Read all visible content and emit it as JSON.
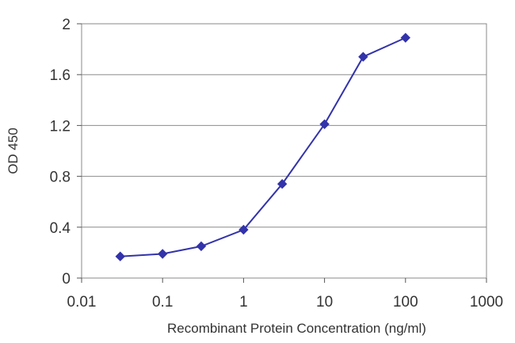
{
  "chart_data": {
    "type": "line",
    "title": "",
    "xlabel": "Recombinant Protein Concentration (ng/ml)",
    "ylabel": "OD 450",
    "x_scale": "log",
    "xlim": [
      0.01,
      1000
    ],
    "ylim": [
      0,
      2
    ],
    "x_ticks": [
      "0.01",
      "0.1",
      "1",
      "10",
      "100",
      "1000"
    ],
    "y_ticks": [
      "0",
      "0.4",
      "0.8",
      "1.2",
      "1.6",
      "2"
    ],
    "grid": "horizontal",
    "legend": "none",
    "series": [
      {
        "x": [
          0.03,
          0.1,
          0.3,
          1,
          3,
          10,
          30,
          100
        ],
        "y": [
          0.17,
          0.19,
          0.25,
          0.38,
          0.74,
          1.21,
          1.74,
          1.89
        ],
        "color": "#3333aa",
        "marker": "diamond"
      }
    ]
  }
}
